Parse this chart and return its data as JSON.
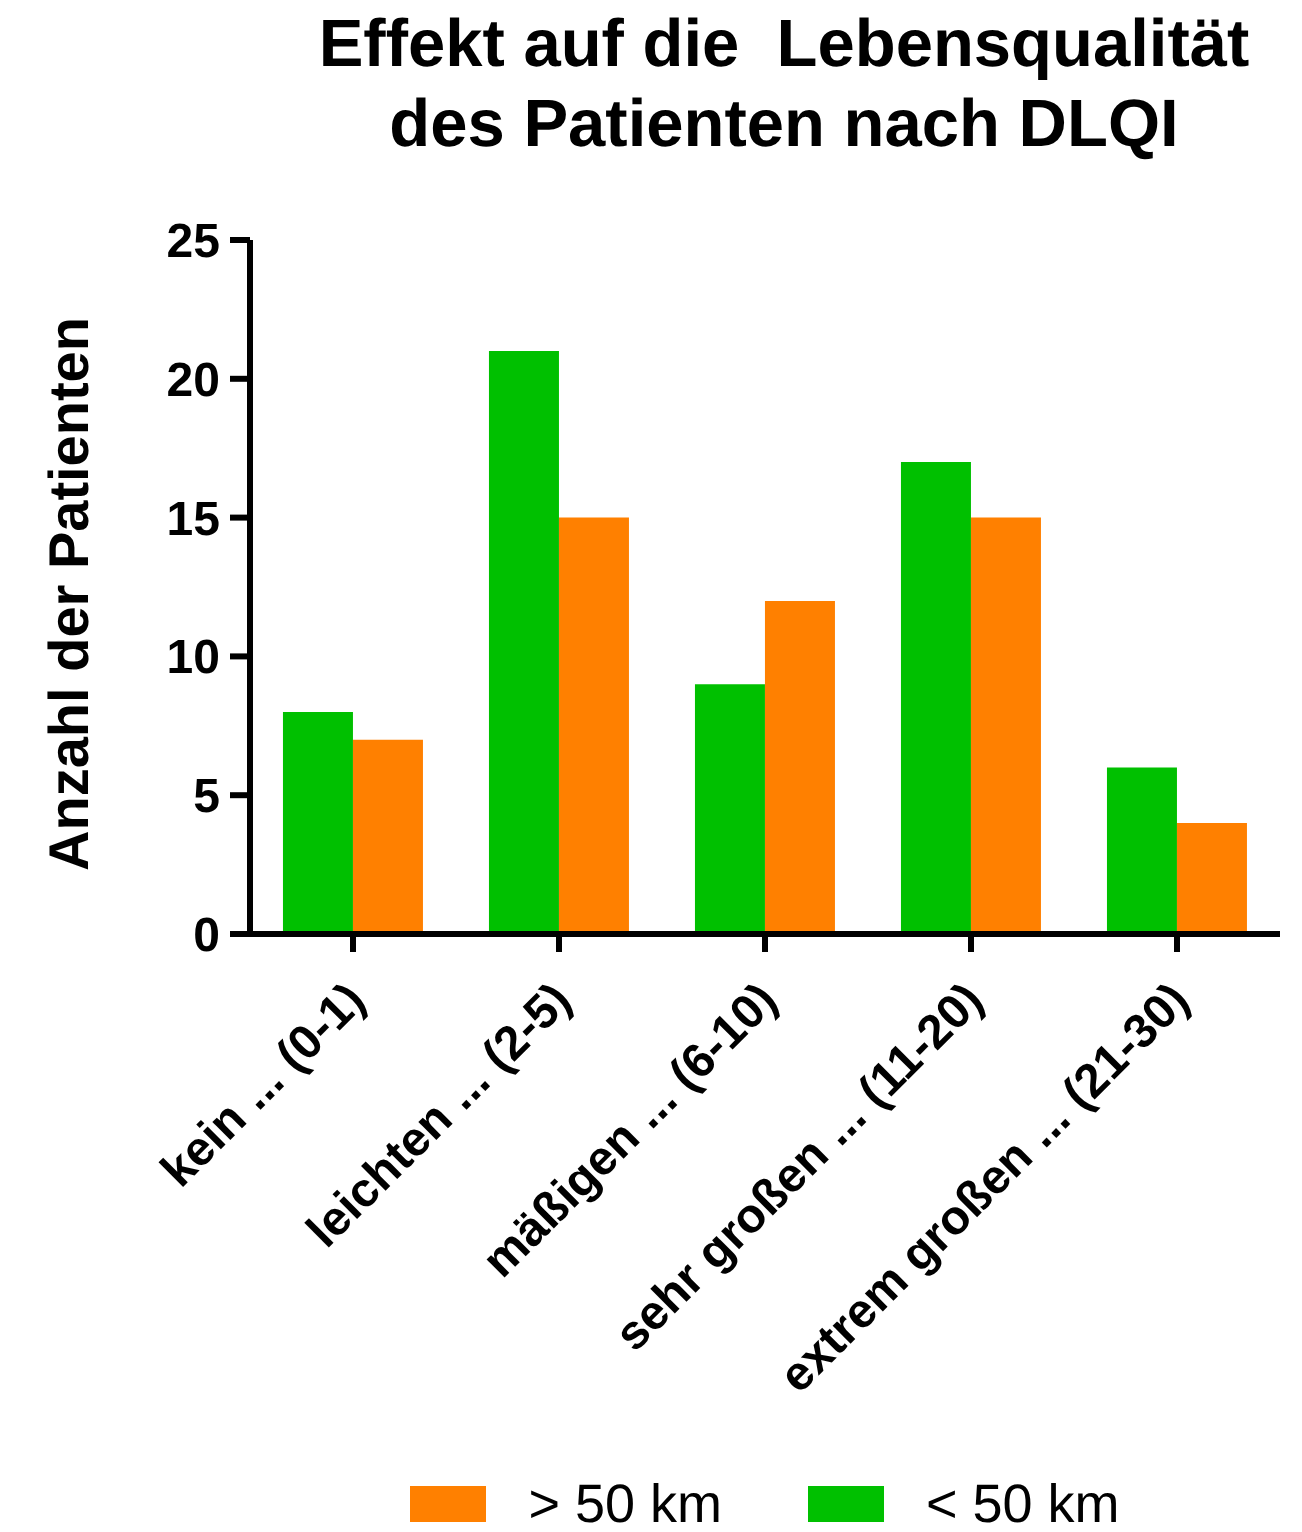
{
  "chart_data": {
    "type": "bar",
    "title": "Effekt auf die  Lebensqualität\ndes Patienten nach DLQI",
    "ylabel": "Anzahl der Patienten",
    "categories": [
      "kein ... (0-1)",
      "leichten ... (2-5)",
      "mäßigen ... (6-10)",
      "sehr großen ... (11-20)",
      "extrem großen ... (21-30)"
    ],
    "series": [
      {
        "name": "< 50 km",
        "color": "#00c000",
        "values": [
          8,
          21,
          9,
          17,
          6
        ]
      },
      {
        "name": "> 50 km",
        "color": "#ff8000",
        "values": [
          7,
          15,
          12,
          15,
          4
        ]
      }
    ],
    "ylim": [
      0,
      25
    ],
    "yticks": [
      0,
      5,
      10,
      15,
      20,
      25
    ],
    "legend": "bottom"
  }
}
